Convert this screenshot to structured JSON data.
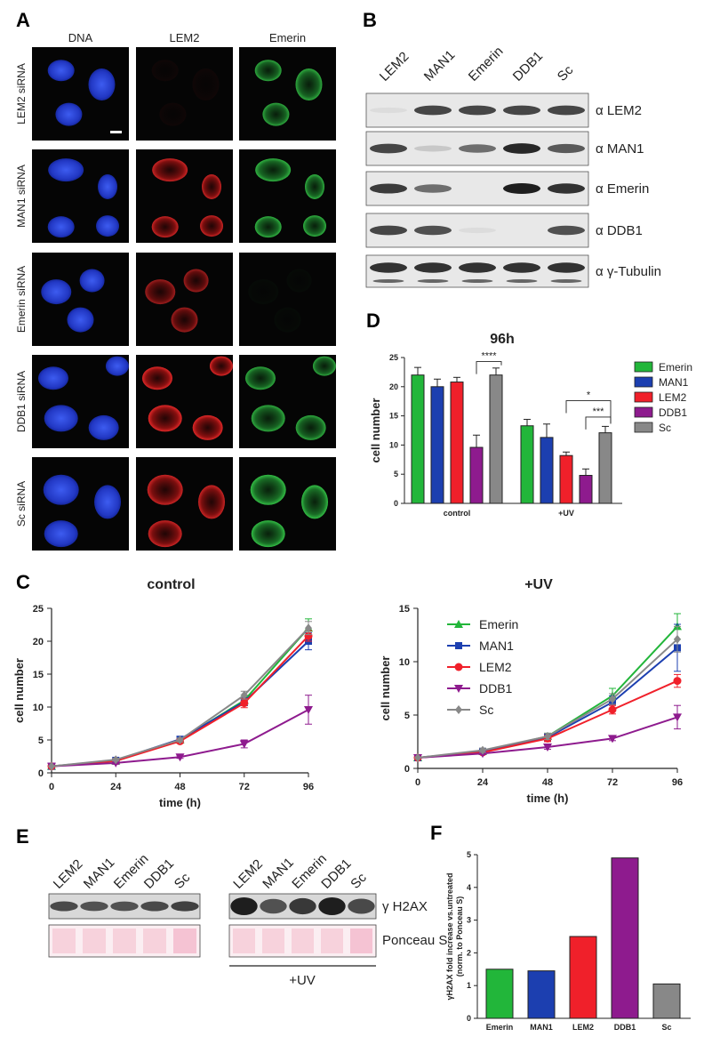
{
  "panel_labels": {
    "A": "A",
    "B": "B",
    "C": "C",
    "D": "D",
    "E": "E",
    "F": "F"
  },
  "micro": {
    "columns": [
      "DNA",
      "LEM2",
      "Emerin"
    ],
    "rows": [
      {
        "label": "LEM2 siRNA",
        "intensity": [
          1.0,
          0.05,
          0.8
        ]
      },
      {
        "label": "MAN1 siRNA",
        "intensity": [
          1.0,
          0.9,
          0.85
        ]
      },
      {
        "label": "Emerin siRNA",
        "intensity": [
          1.0,
          0.7,
          0.03
        ]
      },
      {
        "label": "DDB1 siRNA",
        "intensity": [
          1.0,
          1.0,
          0.8
        ]
      },
      {
        "label": "Sc siRNA",
        "intensity": [
          1.0,
          0.9,
          0.9
        ]
      }
    ],
    "colors": {
      "DNA": "#2a46d6",
      "LEM2": "#d62020",
      "Emerin": "#22b63a"
    }
  },
  "blotB": {
    "lanes": [
      "LEM2",
      "MAN1",
      "Emerin",
      "DDB1",
      "Sc"
    ],
    "antibodies": [
      {
        "label": "α LEM2",
        "bands": [
          0.05,
          0.8,
          0.8,
          0.8,
          0.8
        ]
      },
      {
        "label": "α MAN1",
        "bands": [
          0.8,
          0.15,
          0.6,
          0.95,
          0.7
        ]
      },
      {
        "label": "α Emerin",
        "bands": [
          0.85,
          0.6,
          0.0,
          1.0,
          0.9
        ]
      },
      {
        "label": "α DDB1",
        "bands": [
          0.8,
          0.75,
          0.05,
          0.0,
          0.75
        ]
      },
      {
        "label": "α γ-Tubulin",
        "bands": [
          0.9,
          0.9,
          0.9,
          0.9,
          0.9
        ]
      }
    ]
  },
  "colors": {
    "Emerin": "#22b63a",
    "MAN1": "#1c3fb0",
    "LEM2": "#f0202a",
    "DDB1": "#8e1b8e",
    "Sc": "#888888"
  },
  "chart_data": [
    {
      "type": "line",
      "title": "control",
      "xlabel": "time (h)",
      "ylabel": "cell number",
      "x": [
        0,
        24,
        48,
        72,
        96
      ],
      "xlim": [
        0,
        96
      ],
      "ylim": [
        0,
        25
      ],
      "xticks": [
        0,
        24,
        48,
        72,
        96
      ],
      "yticks": [
        0,
        5,
        10,
        15,
        20,
        25
      ],
      "series": [
        {
          "name": "Emerin",
          "values": [
            1,
            1.8,
            5.0,
            11.0,
            22.0
          ],
          "err": [
            0,
            0.2,
            0.3,
            0.8,
            1.4
          ]
        },
        {
          "name": "MAN1",
          "values": [
            1,
            1.9,
            5.1,
            10.8,
            20.0
          ],
          "err": [
            0,
            0.2,
            0.3,
            0.6,
            1.3
          ]
        },
        {
          "name": "LEM2",
          "values": [
            1,
            1.8,
            4.8,
            10.6,
            20.8
          ],
          "err": [
            0,
            0.2,
            0.3,
            0.7,
            0.8
          ]
        },
        {
          "name": "DDB1",
          "values": [
            1,
            1.5,
            2.4,
            4.4,
            9.6
          ],
          "err": [
            0,
            0.2,
            0.2,
            0.6,
            2.2
          ]
        },
        {
          "name": "Sc",
          "values": [
            1,
            2.0,
            5.0,
            11.8,
            22.0
          ],
          "err": [
            0,
            0.2,
            0.3,
            0.6,
            1.0
          ]
        }
      ]
    },
    {
      "type": "line",
      "title": "+UV",
      "xlabel": "time (h)",
      "ylabel": "cell number",
      "x": [
        0,
        24,
        48,
        72,
        96
      ],
      "xlim": [
        0,
        96
      ],
      "ylim": [
        0,
        15
      ],
      "xticks": [
        0,
        24,
        48,
        72,
        96
      ],
      "yticks": [
        0,
        5,
        10,
        15
      ],
      "legend_placement": "top-left",
      "series": [
        {
          "name": "Emerin",
          "values": [
            1,
            1.6,
            3.0,
            6.8,
            13.3
          ],
          "err": [
            0,
            0.2,
            0.3,
            0.7,
            1.2
          ]
        },
        {
          "name": "MAN1",
          "values": [
            1,
            1.6,
            2.9,
            6.2,
            11.3
          ],
          "err": [
            0,
            0.2,
            0.3,
            0.6,
            2.2
          ]
        },
        {
          "name": "LEM2",
          "values": [
            1,
            1.5,
            2.8,
            5.5,
            8.2
          ],
          "err": [
            0,
            0.2,
            0.3,
            0.4,
            0.6
          ]
        },
        {
          "name": "DDB1",
          "values": [
            1,
            1.4,
            2.0,
            2.8,
            4.8
          ],
          "err": [
            0,
            0.1,
            0.2,
            0.2,
            1.1
          ]
        },
        {
          "name": "Sc",
          "values": [
            1,
            1.7,
            3.0,
            6.5,
            12.1
          ],
          "err": [
            0,
            0.2,
            0.3,
            0.5,
            1.2
          ]
        }
      ]
    },
    {
      "type": "bar",
      "title": "96h",
      "ylabel": "cell number",
      "ylim": [
        0,
        25
      ],
      "yticks": [
        0,
        5,
        10,
        15,
        20,
        25
      ],
      "categories": [
        "control",
        "+UV"
      ],
      "legend_placement": "right",
      "series": [
        {
          "name": "Emerin",
          "values": [
            22.0,
            13.3
          ],
          "err": [
            1.3,
            1.1
          ]
        },
        {
          "name": "MAN1",
          "values": [
            20.0,
            11.3
          ],
          "err": [
            1.3,
            2.3
          ]
        },
        {
          "name": "LEM2",
          "values": [
            20.8,
            8.2
          ],
          "err": [
            0.8,
            0.6
          ]
        },
        {
          "name": "DDB1",
          "values": [
            9.6,
            4.8
          ],
          "err": [
            2.1,
            1.1
          ]
        },
        {
          "name": "Sc",
          "values": [
            22.0,
            12.1
          ],
          "err": [
            1.2,
            1.1
          ]
        }
      ],
      "significance": [
        {
          "text": "****",
          "group": "control",
          "from": "DDB1",
          "to": "Sc"
        },
        {
          "text": "***",
          "group": "+UV",
          "from": "DDB1",
          "to": "Sc"
        },
        {
          "text": "*",
          "group": "+UV",
          "from": "LEM2",
          "to": "Sc"
        }
      ]
    },
    {
      "type": "bar",
      "ylabel": "γH2AX fold increase vs.untreated (norm. to Ponceau S)",
      "categories": [
        "Emerin",
        "MAN1",
        "LEM2",
        "DDB1",
        "Sc"
      ],
      "values": [
        1.5,
        1.45,
        2.5,
        4.9,
        1.05
      ],
      "ylim": [
        0,
        5
      ],
      "yticks": [
        0,
        1,
        2,
        3,
        4,
        5
      ]
    }
  ],
  "blotE": {
    "lanes": [
      "LEM2",
      "MAN1",
      "Emerin",
      "DDB1",
      "Sc"
    ],
    "h2ax_label": "γ H2AX",
    "ponceau_label": "Ponceau S",
    "uv_label": "+UV",
    "ctrl_bands": [
      0.75,
      0.7,
      0.7,
      0.75,
      0.8
    ],
    "uv_bands": [
      1.0,
      0.7,
      0.85,
      1.0,
      0.75
    ]
  }
}
